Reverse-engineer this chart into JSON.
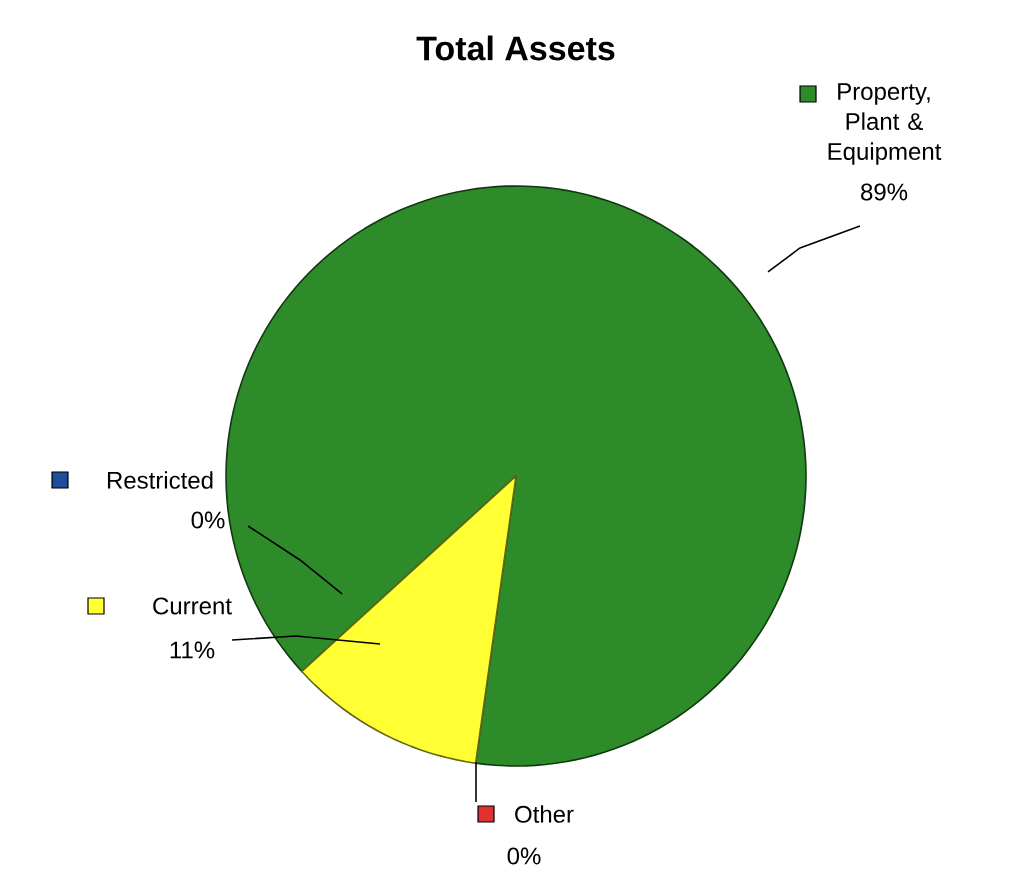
{
  "chart_data": {
    "type": "pie",
    "title": "Total Assets",
    "categories": [
      "Property, Plant & Equipment",
      "Restricted",
      "Current",
      "Other"
    ],
    "values": [
      89,
      0,
      11,
      0
    ],
    "value_labels": [
      "89%",
      "0%",
      "11%",
      "0%"
    ],
    "legend": "left",
    "colors": [
      "#2e8b2a",
      "#1f4e9c",
      "#ffff33",
      "#e03030"
    ]
  }
}
